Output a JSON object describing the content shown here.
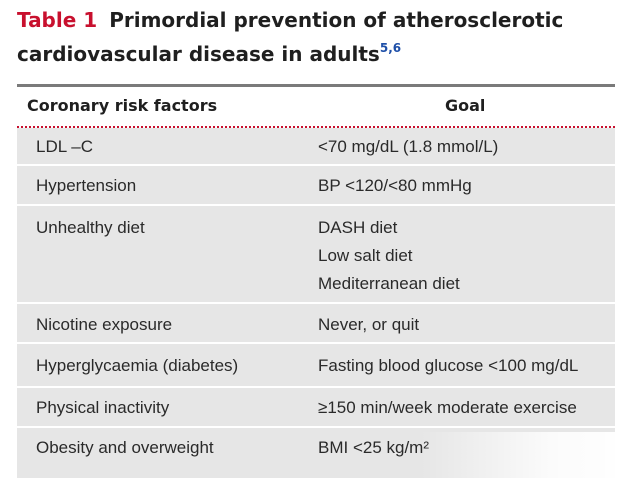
{
  "caption": {
    "label": "Table 1",
    "title": "Primordial prevention of atherosclerotic cardiovascular disease in adults",
    "refs": "5,6"
  },
  "table": {
    "headers": [
      "Coronary risk factors",
      "Goal"
    ],
    "rows": [
      {
        "factor": "LDL –C",
        "goal": [
          "<70 mg/dL (1.8 mmol/L)"
        ]
      },
      {
        "factor": "Hypertension",
        "goal": [
          "BP <120/<80 mmHg"
        ]
      },
      {
        "factor": "Unhealthy diet",
        "goal": [
          "DASH diet",
          "Low salt diet",
          "Mediterranean diet"
        ]
      },
      {
        "factor": "Nicotine exposure",
        "goal": [
          "Never, or quit"
        ]
      },
      {
        "factor": "Hyperglycaemia (diabetes)",
        "goal": [
          "Fasting blood glucose <100 mg/dL"
        ]
      },
      {
        "factor": "Physical inactivity",
        "goal": [
          "≥150 min/week moderate exercise"
        ]
      },
      {
        "factor": "Obesity and overweight",
        "goal": [
          "BMI <25 kg/m²"
        ]
      }
    ]
  }
}
